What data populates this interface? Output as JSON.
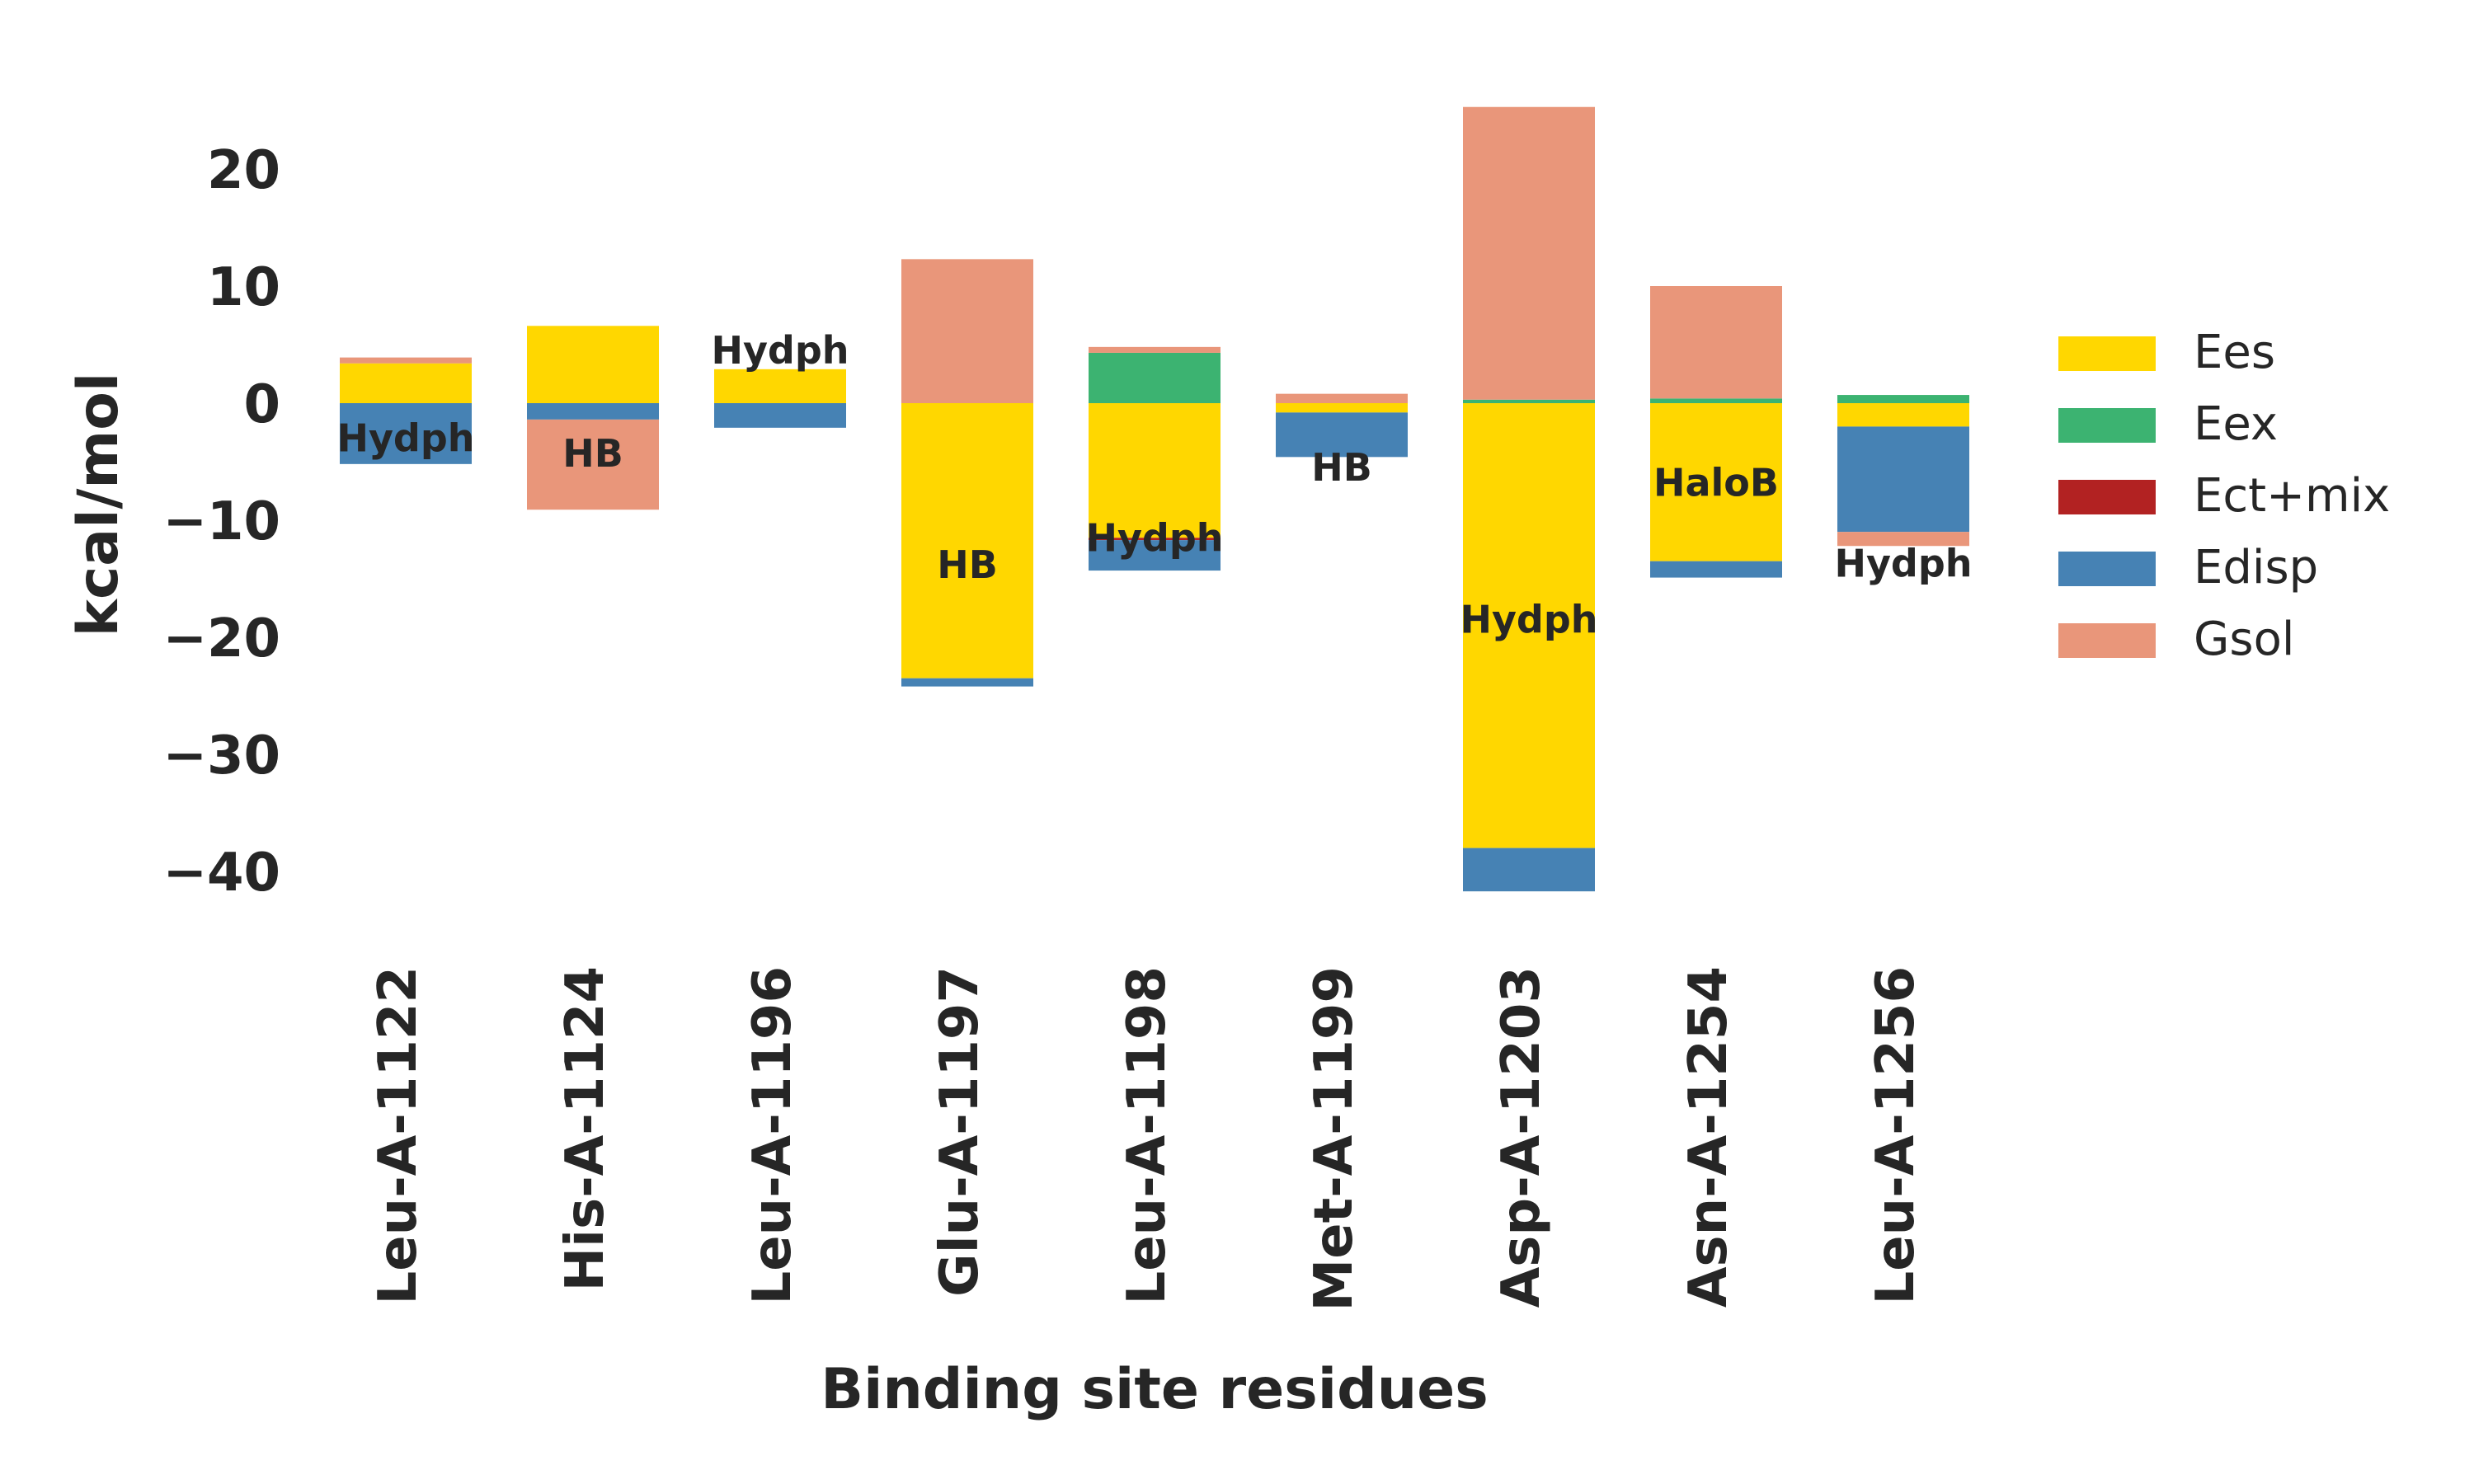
{
  "chart_data": {
    "type": "bar",
    "stacked": true,
    "title": "",
    "xlabel": "Binding site residues",
    "ylabel": "kcal/mol",
    "ylim": [
      -45,
      27
    ],
    "yticks": [
      20,
      10,
      0,
      -10,
      -20,
      -30,
      -40
    ],
    "ytick_labels": [
      "20",
      "10",
      "0",
      "−10",
      "−20",
      "−30",
      "−40"
    ],
    "grid": false,
    "legend_position": "right",
    "categories": [
      "Leu-A-1122",
      "His-A-1124",
      "Leu-A-1196",
      "Glu-A-1197",
      "Leu-A-1198",
      "Met-A-1199",
      "Asp-A-1203",
      "Asn-A-1254",
      "Leu-A-1256"
    ],
    "series": [
      {
        "name": "Ees",
        "color": "#FFD700",
        "values": [
          3.4,
          6.6,
          2.9,
          -23.5,
          -11.5,
          -0.8,
          -38.0,
          -13.5,
          -2.0
        ]
      },
      {
        "name": "Eex",
        "color": "#3CB371",
        "values": [
          0.0,
          0.0,
          0.0,
          0.0,
          4.3,
          0.0,
          0.3,
          0.4,
          0.7
        ]
      },
      {
        "name": "Ect+mix",
        "color": "#B22222",
        "values": [
          0.0,
          0.0,
          0.0,
          0.0,
          -0.2,
          0.0,
          0.0,
          0.0,
          0.0
        ]
      },
      {
        "name": "Edisp",
        "color": "#4682B4",
        "values": [
          -5.2,
          -1.4,
          -2.1,
          -0.7,
          -2.6,
          -3.8,
          -3.7,
          -1.4,
          -9.0
        ]
      },
      {
        "name": "Gsol",
        "color": "#E9967A",
        "values": [
          0.5,
          -7.7,
          0.0,
          12.3,
          0.5,
          0.8,
          25.0,
          9.6,
          -1.2
        ]
      }
    ],
    "annotations": [
      {
        "category": "Leu-A-1122",
        "text": "Hydph",
        "y": -3.0
      },
      {
        "category": "His-A-1124",
        "text": "HB",
        "y": -4.3
      },
      {
        "category": "Leu-A-1196",
        "text": "Hydph",
        "y": 4.5
      },
      {
        "category": "Glu-A-1197",
        "text": "HB",
        "y": -13.8
      },
      {
        "category": "Leu-A-1198",
        "text": "Hydph",
        "y": -11.5
      },
      {
        "category": "Met-A-1199",
        "text": "HB",
        "y": -5.5
      },
      {
        "category": "Asp-A-1203",
        "text": "Hydph",
        "y": -18.5
      },
      {
        "category": "Asn-A-1254",
        "text": "HaloB",
        "y": -6.8
      },
      {
        "category": "Leu-A-1256",
        "text": "Hydph",
        "y": -13.7
      }
    ]
  }
}
